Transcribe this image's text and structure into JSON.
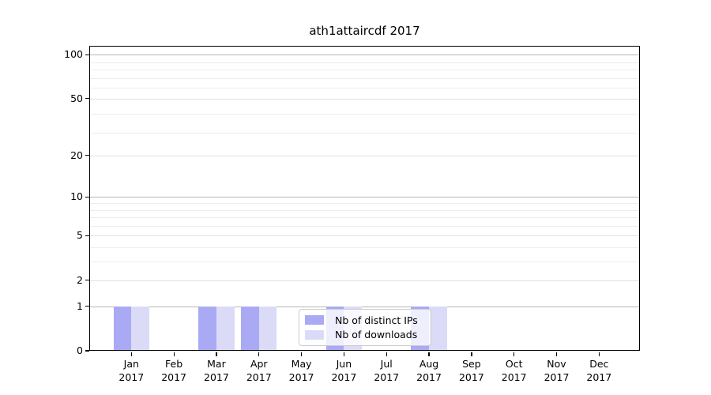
{
  "title": "ath1attaircdf 2017",
  "chart_data": {
    "type": "bar",
    "title": "ath1attaircdf 2017",
    "categories": [
      "Jan",
      "Feb",
      "Mar",
      "Apr",
      "May",
      "Jun",
      "Jul",
      "Aug",
      "Sep",
      "Oct",
      "Nov",
      "Dec"
    ],
    "category_year": "2017",
    "series": [
      {
        "name": "Nb of distinct IPs",
        "color": "#a9a9f4",
        "values": [
          1,
          0,
          1,
          1,
          0,
          1,
          0,
          1,
          0,
          0,
          0,
          0
        ]
      },
      {
        "name": "Nb of downloads",
        "color": "#dbdbf8",
        "values": [
          1,
          0,
          1,
          1,
          0,
          1,
          0,
          1,
          0,
          0,
          0,
          0
        ]
      }
    ],
    "yscale": "log10(value+1)",
    "ylim": [
      0,
      115
    ],
    "yticks": [
      0,
      1,
      2,
      5,
      10,
      20,
      50,
      100
    ],
    "gridlines": {
      "major_values": [
        1,
        10,
        100
      ],
      "mid_values": [
        2,
        5,
        20,
        50
      ],
      "minor_values": [
        3,
        4,
        6,
        7,
        8,
        9,
        29,
        39,
        59,
        69,
        79,
        89
      ]
    },
    "grid": true,
    "legend_position": "bottom-center",
    "xlabel": "",
    "ylabel": ""
  },
  "colors": {
    "bar_distinct_ips": "#a9a9f4",
    "bar_downloads": "#dbdbf8",
    "grid_major": "#b6b6b6",
    "grid_mid": "#e0e0e0",
    "grid_minor": "#ededed",
    "spine": "#000000",
    "legend_border": "#cccccc"
  }
}
